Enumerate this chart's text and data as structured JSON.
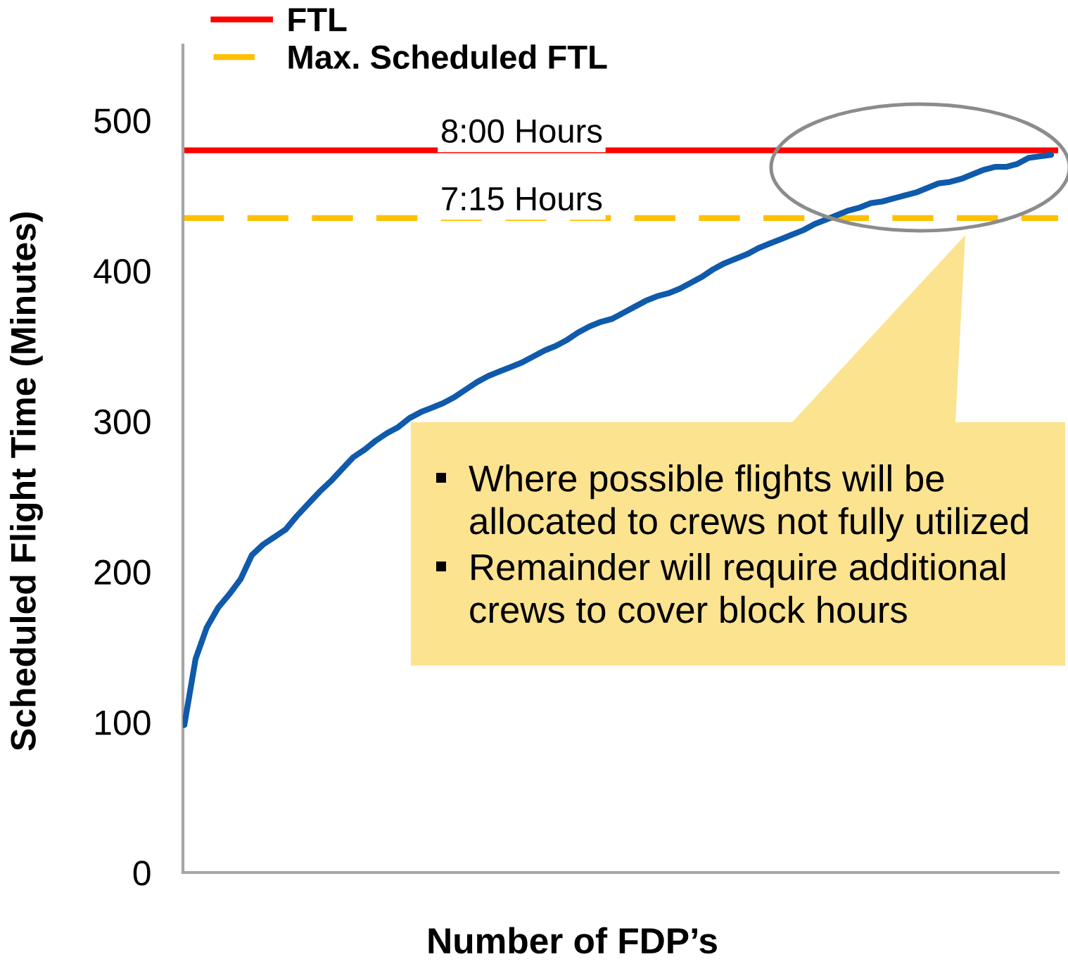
{
  "chart_data": {
    "type": "line",
    "xlabel": "Number of FDP’s",
    "ylabel": "Scheduled Flight Time (Minutes)",
    "categories": [
      null,
      null,
      null,
      null,
      null,
      null,
      null,
      null,
      null,
      null,
      null,
      null,
      null,
      null,
      null,
      null,
      null,
      null,
      null,
      null,
      null,
      null,
      null,
      null,
      null,
      null,
      null,
      null,
      null,
      null,
      null,
      null,
      null,
      null,
      null,
      null,
      null,
      null,
      null,
      null,
      null,
      null,
      null,
      null,
      null,
      null,
      null,
      null,
      null,
      null,
      null,
      null,
      null,
      null,
      null,
      null,
      null,
      null,
      null,
      null,
      null,
      null,
      null,
      null,
      null,
      null,
      null,
      null,
      null,
      null,
      null,
      null,
      null,
      null,
      null,
      null,
      null,
      null
    ],
    "series": [
      {
        "color": "#0f5aab",
        "values": [
          98,
          142,
          163,
          176,
          185,
          195,
          211,
          218,
          223,
          228,
          237,
          245,
          253,
          260,
          268,
          276,
          281,
          287,
          292,
          296,
          302,
          306,
          309,
          312,
          316,
          321,
          326,
          330,
          333,
          336,
          339,
          343,
          347,
          350,
          354,
          359,
          363,
          366,
          368,
          372,
          376,
          380,
          383,
          385,
          388,
          392,
          396,
          401,
          405,
          408,
          411,
          415,
          418,
          421,
          424,
          427,
          431,
          434,
          437,
          440,
          442,
          445,
          446,
          448,
          450,
          452,
          455,
          458,
          459,
          461,
          464,
          467,
          469,
          469,
          471,
          475,
          476,
          477
        ]
      }
    ],
    "ylim": [
      0,
      550
    ],
    "yticks": [
      0,
      100,
      200,
      300,
      400,
      500
    ],
    "tick_labels": "y",
    "ref_lines": [
      {
        "axis": "y",
        "value": 480,
        "label": "FTL",
        "color": "#ff0000",
        "line_style": "solid"
      },
      {
        "axis": "y",
        "value": 435,
        "label": "Max. Scheduled FTL",
        "color": "#ffc000",
        "line_style": "dashed"
      }
    ],
    "annotations": [
      {
        "text": "8:00 Hours",
        "y": 480
      },
      {
        "text": "7:15 Hours",
        "y": 435
      },
      "Where possible flights will be\nallocated to crews not fully utilized",
      "Remainder will require additional\ncrews to cover block hours"
    ],
    "legend": "top left"
  }
}
